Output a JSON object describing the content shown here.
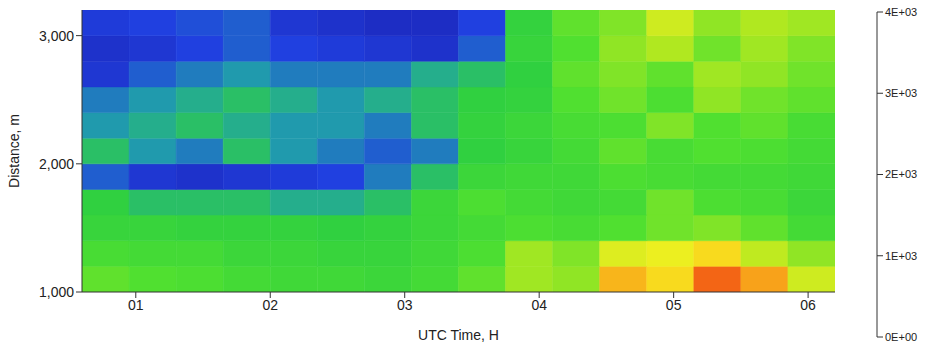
{
  "chart_data": {
    "type": "heatmap",
    "x_label": "UTC Time, H",
    "y_label": "Distance, m",
    "xlim": [
      0.6,
      6.2
    ],
    "ylim": [
      1000,
      3200
    ],
    "xticks": [
      {
        "value": 1,
        "label": "01"
      },
      {
        "value": 2,
        "label": "02"
      },
      {
        "value": 3,
        "label": "03"
      },
      {
        "value": 4,
        "label": "04"
      },
      {
        "value": 5,
        "label": "05"
      },
      {
        "value": 6,
        "label": "06"
      }
    ],
    "yticks": [
      {
        "value": 1000,
        "label": "1,000"
      },
      {
        "value": 2000,
        "label": "2,000"
      },
      {
        "value": 3000,
        "label": "3,000"
      }
    ],
    "x_bins": [
      0.6,
      0.95,
      1.3,
      1.65,
      2.0,
      2.35,
      2.7,
      3.05,
      3.4,
      3.75,
      4.1,
      4.45,
      4.8,
      5.15,
      5.5,
      5.85,
      6.2
    ],
    "y_bins": [
      1000,
      1200,
      1400,
      1600,
      1800,
      2000,
      2200,
      2400,
      2600,
      2800,
      3000,
      3200
    ],
    "cells": [
      [
        1900,
        1800,
        1700,
        1500,
        1400,
        1400,
        1300,
        1500,
        1900,
        2300,
        2200,
        3200,
        3000,
        3600,
        3300,
        2600
      ],
      [
        1600,
        1500,
        1500,
        1300,
        1300,
        1200,
        1200,
        1400,
        1700,
        2300,
        2100,
        2700,
        2800,
        3000,
        2500,
        2200
      ],
      [
        1200,
        1200,
        1100,
        1100,
        1100,
        1000,
        1100,
        1300,
        1500,
        1700,
        1600,
        1800,
        2000,
        2100,
        1900,
        1500
      ],
      [
        1000,
        900,
        900,
        900,
        800,
        800,
        900,
        1300,
        1700,
        1500,
        1400,
        1500,
        2000,
        1700,
        1600,
        1300
      ],
      [
        500,
        300,
        250,
        300,
        350,
        400,
        600,
        900,
        1300,
        1400,
        1400,
        1700,
        1600,
        1500,
        1500,
        1400
      ],
      [
        900,
        700,
        600,
        900,
        700,
        600,
        500,
        600,
        1000,
        1200,
        1500,
        1900,
        1600,
        1800,
        1700,
        1500
      ],
      [
        700,
        800,
        900,
        800,
        700,
        700,
        600,
        900,
        1100,
        1300,
        1600,
        1700,
        2100,
        1800,
        1900,
        1600
      ],
      [
        600,
        700,
        800,
        900,
        800,
        700,
        800,
        900,
        1000,
        1100,
        1800,
        2000,
        1700,
        2200,
        2000,
        1900
      ],
      [
        300,
        500,
        600,
        700,
        600,
        600,
        600,
        800,
        900,
        1000,
        1900,
        2100,
        1900,
        2300,
        2200,
        2000
      ],
      [
        250,
        300,
        400,
        500,
        400,
        350,
        300,
        250,
        500,
        1200,
        1800,
        2200,
        2400,
        2000,
        2300,
        2100
      ],
      [
        350,
        400,
        450,
        500,
        300,
        250,
        200,
        200,
        400,
        1100,
        1900,
        2100,
        2600,
        2200,
        2400,
        2300
      ]
    ],
    "colorbar_range": [
      0,
      4000
    ],
    "colorbar_ticks": [
      {
        "value": 0,
        "label": "0E+00"
      },
      {
        "value": 1000,
        "label": "1E+03"
      },
      {
        "value": 2000,
        "label": "2E+03"
      },
      {
        "value": 3000,
        "label": "3E+03"
      },
      {
        "value": 4000,
        "label": "4E+03"
      }
    ]
  }
}
